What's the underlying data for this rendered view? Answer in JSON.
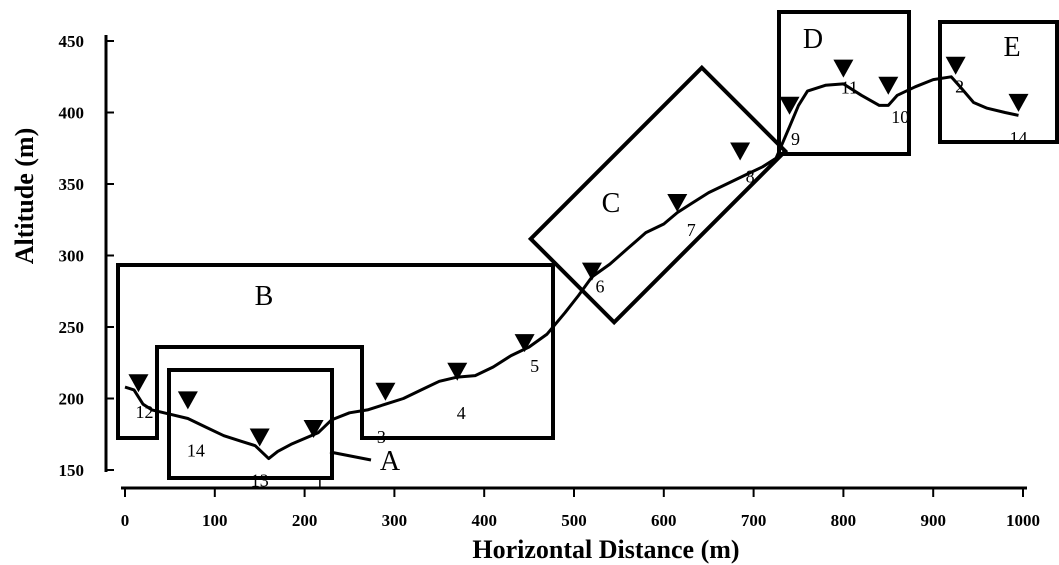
{
  "chart_data": {
    "type": "line",
    "title": "",
    "xlabel": "Horizontal Distance (m)",
    "ylabel": "Altitude (m)",
    "xlim": [
      0,
      1000
    ],
    "ylim": [
      150,
      450
    ],
    "xticks": [
      0,
      100,
      200,
      300,
      400,
      500,
      600,
      700,
      800,
      900,
      1000
    ],
    "yticks": [
      150,
      200,
      250,
      300,
      350,
      400,
      450
    ],
    "grid": false,
    "legend": "none",
    "profile": {
      "x": [
        0,
        10,
        20,
        30,
        50,
        70,
        90,
        110,
        130,
        145,
        160,
        170,
        185,
        200,
        215,
        230,
        250,
        270,
        290,
        310,
        330,
        350,
        370,
        390,
        410,
        430,
        450,
        470,
        490,
        505,
        520,
        540,
        560,
        580,
        600,
        615,
        630,
        650,
        670,
        690,
        710,
        725,
        740,
        750,
        760,
        780,
        800,
        820,
        840,
        850,
        860,
        880,
        900,
        920,
        930,
        945,
        960,
        980,
        995
      ],
      "y": [
        208,
        206,
        196,
        192,
        189,
        186,
        180,
        174,
        170,
        167,
        158,
        163,
        168,
        172,
        176,
        185,
        190,
        192,
        196,
        200,
        206,
        212,
        215,
        216,
        222,
        230,
        236,
        245,
        260,
        272,
        285,
        294,
        305,
        316,
        322,
        330,
        336,
        344,
        350,
        356,
        362,
        368,
        390,
        405,
        415,
        419,
        420,
        412,
        405,
        405,
        412,
        418,
        423,
        425,
        418,
        407,
        403,
        400,
        398
      ]
    },
    "stations": [
      {
        "label": "12",
        "x": 15,
        "y": 210
      },
      {
        "label": "14",
        "x": 70,
        "y": 198
      },
      {
        "label": "13",
        "x": 150,
        "y": 172
      },
      {
        "label": "1",
        "x": 210,
        "y": 178
      },
      {
        "label": "3",
        "x": 290,
        "y": 204
      },
      {
        "label": "4",
        "x": 370,
        "y": 218
      },
      {
        "label": "5",
        "x": 445,
        "y": 238
      },
      {
        "label": "6",
        "x": 520,
        "y": 288
      },
      {
        "label": "7",
        "x": 615,
        "y": 336
      },
      {
        "label": "8",
        "x": 685,
        "y": 372
      },
      {
        "label": "9",
        "x": 740,
        "y": 404
      },
      {
        "label": "11",
        "x": 800,
        "y": 430
      },
      {
        "label": "10",
        "x": 850,
        "y": 418
      },
      {
        "label": "2",
        "x": 925,
        "y": 432
      },
      {
        "label": "14",
        "x": 995,
        "y": 406
      }
    ],
    "regions": [
      {
        "label": "A"
      },
      {
        "label": "B"
      },
      {
        "label": "C"
      },
      {
        "label": "D"
      },
      {
        "label": "E"
      }
    ]
  }
}
